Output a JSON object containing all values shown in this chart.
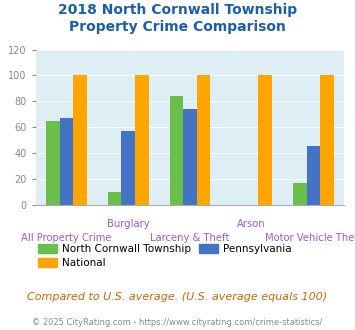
{
  "title": "2018 North Cornwall Township\nProperty Crime Comparison",
  "categories": [
    "All Property Crime",
    "Burglary",
    "Larceny & Theft",
    "Arson",
    "Motor Vehicle Theft"
  ],
  "series": {
    "North Cornwall Township": [
      65,
      10,
      84,
      0,
      17
    ],
    "Pennsylvania": [
      67,
      57,
      74,
      0,
      45
    ],
    "National": [
      100,
      100,
      100,
      100,
      100
    ]
  },
  "bar_order": [
    "North Cornwall Township",
    "Pennsylvania",
    "National"
  ],
  "colors": {
    "North Cornwall Township": "#6abf4b",
    "Pennsylvania": "#4472c4",
    "National": "#ffa500"
  },
  "ylim": [
    0,
    120
  ],
  "yticks": [
    0,
    20,
    40,
    60,
    80,
    100,
    120
  ],
  "bar_width": 0.22,
  "plot_bg": "#ddeef5",
  "fig_bg": "#ffffff",
  "title_color": "#1a5fa8",
  "xlabel_color_top": "#9b59d0",
  "xlabel_color_bottom": "#9b59d0",
  "note_text": "Compared to U.S. average. (U.S. average equals 100)",
  "note_color": "#cc6600",
  "copyright_text": "© 2025 CityRating.com - https://www.cityrating.com/crime-statistics/",
  "copyright_color": "#888888",
  "top_labels": [
    "",
    "Burglary",
    "",
    "Arson",
    ""
  ],
  "bottom_labels": [
    "All Property Crime",
    "",
    "Larceny & Theft",
    "",
    "Motor Vehicle Theft"
  ],
  "grid_color": "#ffffff",
  "tick_color": "#888888"
}
